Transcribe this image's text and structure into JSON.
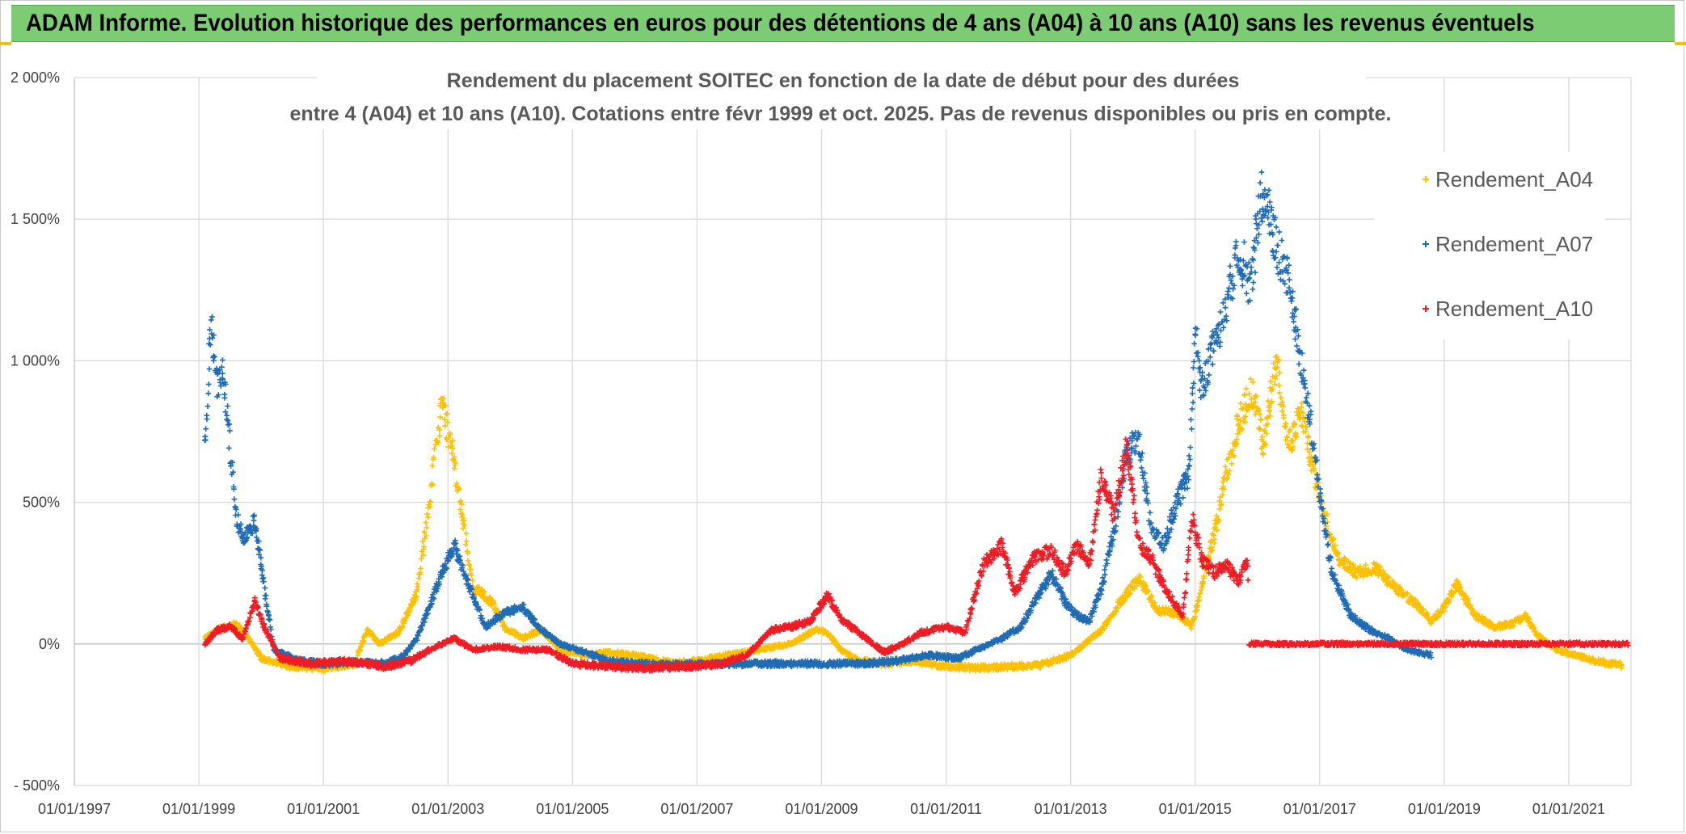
{
  "header": {
    "title": "ADAM Informe. Evolution historique des performances en euros pour des détentions de 4 ans (A04) à 10 ans (A10) sans les revenus éventuels"
  },
  "chart_data": {
    "type": "scatter",
    "title_line1": "Rendement du placement SOITEC en fonction de la date de début pour des durées",
    "title_line2": "entre 4 (A04) et 10 ans (A10). Cotations entre févr 1999 et oct. 2025. Pas de revenus disponibles ou pris en compte.",
    "xlabel": "",
    "ylabel": "",
    "xlim": [
      1997.0,
      2022.0
    ],
    "ylim": [
      -500,
      2000
    ],
    "x_ticks": [
      1997,
      1999,
      2001,
      2003,
      2005,
      2007,
      2009,
      2011,
      2013,
      2015,
      2017,
      2019,
      2021
    ],
    "x_tick_labels": [
      "01/01/1997",
      "01/01/1999",
      "01/01/2001",
      "01/01/2003",
      "01/01/2005",
      "01/01/2007",
      "01/01/2009",
      "01/01/2011",
      "01/01/2013",
      "01/01/2015",
      "01/01/2017",
      "01/01/2019",
      "01/01/2021"
    ],
    "y_ticks": [
      -500,
      0,
      500,
      1000,
      1500,
      2000
    ],
    "y_tick_labels": [
      "- 500%",
      "0%",
      "500%",
      "1 000%",
      "1 500%",
      "2 000%"
    ],
    "grid": true,
    "legend_position": "top-right",
    "marker": "+",
    "series": [
      {
        "name": "Rendement_A04",
        "color": "#ffc000",
        "x_start": 1999.1,
        "x_end": 2021.85,
        "points": [
          [
            1999.1,
            20
          ],
          [
            1999.3,
            50
          ],
          [
            1999.6,
            70
          ],
          [
            1999.8,
            20
          ],
          [
            2000.0,
            -50
          ],
          [
            2000.5,
            -80
          ],
          [
            2001.0,
            -85
          ],
          [
            2001.5,
            -70
          ],
          [
            2001.7,
            50
          ],
          [
            2001.9,
            0
          ],
          [
            2002.2,
            40
          ],
          [
            2002.5,
            180
          ],
          [
            2002.7,
            500
          ],
          [
            2002.9,
            850
          ],
          [
            2003.05,
            700
          ],
          [
            2003.2,
            500
          ],
          [
            2003.4,
            200
          ],
          [
            2003.7,
            150
          ],
          [
            2003.9,
            60
          ],
          [
            2004.2,
            20
          ],
          [
            2004.5,
            50
          ],
          [
            2004.8,
            -20
          ],
          [
            2005.2,
            -40
          ],
          [
            2005.6,
            -30
          ],
          [
            2006.0,
            -40
          ],
          [
            2006.6,
            -70
          ],
          [
            2007.0,
            -60
          ],
          [
            2007.5,
            -40
          ],
          [
            2008.0,
            -20
          ],
          [
            2008.5,
            0
          ],
          [
            2008.9,
            50
          ],
          [
            2009.1,
            40
          ],
          [
            2009.3,
            -20
          ],
          [
            2009.6,
            -60
          ],
          [
            2010.0,
            -70
          ],
          [
            2010.5,
            -60
          ],
          [
            2011.0,
            -80
          ],
          [
            2011.5,
            -85
          ],
          [
            2012.0,
            -80
          ],
          [
            2012.5,
            -75
          ],
          [
            2013.0,
            -40
          ],
          [
            2013.5,
            50
          ],
          [
            2013.8,
            150
          ],
          [
            2014.1,
            230
          ],
          [
            2014.4,
            120
          ],
          [
            2014.7,
            110
          ],
          [
            2014.95,
            60
          ],
          [
            2015.1,
            200
          ],
          [
            2015.3,
            380
          ],
          [
            2015.5,
            600
          ],
          [
            2015.7,
            780
          ],
          [
            2015.9,
            900
          ],
          [
            2016.1,
            700
          ],
          [
            2016.3,
            1000
          ],
          [
            2016.5,
            700
          ],
          [
            2016.7,
            820
          ],
          [
            2016.9,
            620
          ],
          [
            2017.05,
            480
          ],
          [
            2017.3,
            300
          ],
          [
            2017.6,
            250
          ],
          [
            2017.9,
            270
          ],
          [
            2018.2,
            200
          ],
          [
            2018.5,
            150
          ],
          [
            2018.8,
            80
          ],
          [
            2019.0,
            130
          ],
          [
            2019.2,
            210
          ],
          [
            2019.5,
            100
          ],
          [
            2019.8,
            60
          ],
          [
            2020.1,
            70
          ],
          [
            2020.3,
            100
          ],
          [
            2020.5,
            30
          ],
          [
            2020.8,
            -20
          ],
          [
            2021.1,
            -40
          ],
          [
            2021.4,
            -60
          ],
          [
            2021.7,
            -70
          ],
          [
            2021.85,
            -75
          ]
        ]
      },
      {
        "name": "Rendement_A07",
        "color": "#1f6cb5",
        "x_start": 1999.1,
        "x_end": 2018.8,
        "points": [
          [
            1999.1,
            700
          ],
          [
            1999.2,
            1150
          ],
          [
            1999.3,
            900
          ],
          [
            1999.4,
            950
          ],
          [
            1999.5,
            700
          ],
          [
            1999.6,
            450
          ],
          [
            1999.7,
            380
          ],
          [
            1999.9,
            430
          ],
          [
            2000.05,
            200
          ],
          [
            2000.2,
            -20
          ],
          [
            2000.6,
            -60
          ],
          [
            2001.0,
            -70
          ],
          [
            2001.5,
            -65
          ],
          [
            2002.0,
            -70
          ],
          [
            2002.3,
            -40
          ],
          [
            2002.5,
            20
          ],
          [
            2002.7,
            130
          ],
          [
            2002.9,
            250
          ],
          [
            2003.1,
            350
          ],
          [
            2003.3,
            220
          ],
          [
            2003.6,
            60
          ],
          [
            2003.9,
            110
          ],
          [
            2004.2,
            130
          ],
          [
            2004.5,
            50
          ],
          [
            2004.8,
            0
          ],
          [
            2005.2,
            -30
          ],
          [
            2005.6,
            -60
          ],
          [
            2006.0,
            -70
          ],
          [
            2006.6,
            -75
          ],
          [
            2007.2,
            -70
          ],
          [
            2007.8,
            -70
          ],
          [
            2008.5,
            -70
          ],
          [
            2009.0,
            -70
          ],
          [
            2009.6,
            -70
          ],
          [
            2010.2,
            -60
          ],
          [
            2010.7,
            -40
          ],
          [
            2011.2,
            -50
          ],
          [
            2011.6,
            -10
          ],
          [
            2011.9,
            20
          ],
          [
            2012.2,
            60
          ],
          [
            2012.5,
            180
          ],
          [
            2012.7,
            250
          ],
          [
            2012.9,
            150
          ],
          [
            2013.1,
            100
          ],
          [
            2013.3,
            80
          ],
          [
            2013.5,
            200
          ],
          [
            2013.7,
            400
          ],
          [
            2013.9,
            680
          ],
          [
            2014.1,
            720
          ],
          [
            2014.3,
            400
          ],
          [
            2014.5,
            350
          ],
          [
            2014.7,
            500
          ],
          [
            2014.9,
            600
          ],
          [
            2015.0,
            1100
          ],
          [
            2015.1,
            900
          ],
          [
            2015.3,
            1050
          ],
          [
            2015.5,
            1200
          ],
          [
            2015.7,
            1400
          ],
          [
            2015.9,
            1250
          ],
          [
            2016.05,
            1600
          ],
          [
            2016.2,
            1500
          ],
          [
            2016.3,
            1400
          ],
          [
            2016.5,
            1300
          ],
          [
            2016.7,
            1000
          ],
          [
            2016.9,
            700
          ],
          [
            2017.05,
            450
          ],
          [
            2017.2,
            250
          ],
          [
            2017.5,
            100
          ],
          [
            2017.8,
            50
          ],
          [
            2018.1,
            20
          ],
          [
            2018.4,
            -20
          ],
          [
            2018.8,
            -40
          ]
        ]
      },
      {
        "name": "Rendement_A10",
        "color": "#ee1c25",
        "x_start": 1999.1,
        "x_end": 2021.95,
        "points": [
          [
            1999.1,
            0
          ],
          [
            1999.3,
            50
          ],
          [
            1999.5,
            60
          ],
          [
            1999.7,
            20
          ],
          [
            1999.9,
            150
          ],
          [
            2000.05,
            60
          ],
          [
            2000.3,
            -50
          ],
          [
            2000.8,
            -70
          ],
          [
            2001.3,
            -60
          ],
          [
            2001.7,
            -70
          ],
          [
            2002.0,
            -80
          ],
          [
            2002.4,
            -60
          ],
          [
            2002.8,
            -10
          ],
          [
            2003.1,
            20
          ],
          [
            2003.4,
            -20
          ],
          [
            2003.8,
            -10
          ],
          [
            2004.2,
            -20
          ],
          [
            2004.6,
            -20
          ],
          [
            2005.0,
            -70
          ],
          [
            2005.6,
            -80
          ],
          [
            2006.2,
            -85
          ],
          [
            2006.8,
            -80
          ],
          [
            2007.4,
            -70
          ],
          [
            2007.8,
            -40
          ],
          [
            2008.2,
            50
          ],
          [
            2008.5,
            60
          ],
          [
            2008.8,
            80
          ],
          [
            2009.1,
            170
          ],
          [
            2009.3,
            90
          ],
          [
            2009.6,
            40
          ],
          [
            2010.0,
            -30
          ],
          [
            2010.3,
            0
          ],
          [
            2010.6,
            40
          ],
          [
            2011.0,
            60
          ],
          [
            2011.3,
            40
          ],
          [
            2011.6,
            280
          ],
          [
            2011.9,
            350
          ],
          [
            2012.1,
            180
          ],
          [
            2012.4,
            300
          ],
          [
            2012.7,
            330
          ],
          [
            2012.9,
            250
          ],
          [
            2013.1,
            350
          ],
          [
            2013.3,
            280
          ],
          [
            2013.5,
            600
          ],
          [
            2013.7,
            450
          ],
          [
            2013.9,
            700
          ],
          [
            2014.1,
            350
          ],
          [
            2014.3,
            300
          ],
          [
            2014.5,
            200
          ],
          [
            2014.8,
            100
          ],
          [
            2014.95,
            450
          ],
          [
            2015.1,
            300
          ],
          [
            2015.3,
            250
          ],
          [
            2015.5,
            280
          ],
          [
            2015.7,
            220
          ],
          [
            2015.85,
            300
          ],
          [
            2015.86,
            0
          ],
          [
            2017.0,
            0
          ],
          [
            2018.0,
            0
          ],
          [
            2019.0,
            0
          ],
          [
            2020.0,
            0
          ],
          [
            2021.0,
            0
          ],
          [
            2021.95,
            0
          ]
        ]
      }
    ]
  }
}
